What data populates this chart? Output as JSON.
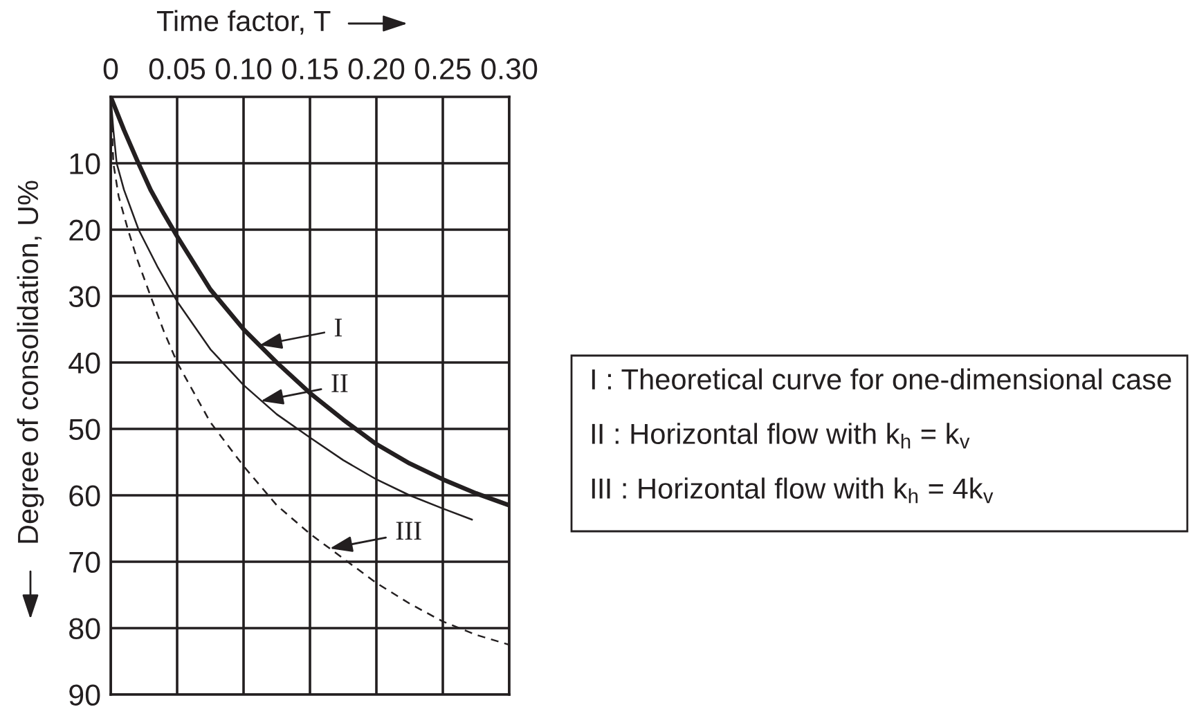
{
  "chart_data": {
    "type": "line",
    "xlabel": "Time factor, T",
    "ylabel": "Degree of consolidation, U%",
    "xlim": [
      0,
      0.3
    ],
    "xticks": [
      0,
      0.05,
      {
        "value": 0.1,
        "label": "0.10"
      },
      0.15,
      {
        "value": 0.2,
        "label": "0.20"
      },
      0.25,
      {
        "value": 0.3,
        "label": "0.30"
      }
    ],
    "ylim": [
      90,
      0
    ],
    "yticks": [
      10,
      20,
      30,
      40,
      50,
      60,
      70,
      80,
      90
    ],
    "grid": true,
    "series": [
      {
        "color": "#231f20",
        "line_style": "solid",
        "x": [
          0,
          0.01,
          0.02,
          0.03,
          0.04,
          0.05,
          0.075,
          0.1,
          0.125,
          0.15,
          0.175,
          0.2,
          0.225,
          0.25,
          0.275,
          0.3
        ],
        "values": [
          0,
          5,
          9.6,
          14,
          17.6,
          21,
          29,
          35,
          40,
          44.6,
          48.6,
          52.3,
          55.2,
          57.6,
          59.7,
          61.5
        ]
      },
      {
        "color": "#231f20",
        "line_style": "solid",
        "x": [
          0,
          0.002,
          0.0045,
          0.01,
          0.021,
          0.035,
          0.05,
          0.075,
          0.1,
          0.125,
          0.15,
          0.175,
          0.2,
          0.225,
          0.25,
          0.2725
        ],
        "values": [
          0,
          5,
          10,
          14,
          20,
          25.5,
          30.8,
          38,
          43.4,
          47.8,
          51.3,
          54.7,
          57.6,
          60,
          62,
          63.7
        ]
      },
      {
        "color": "#231f20",
        "line_style": "dashed",
        "x": [
          0,
          0.001,
          0.002,
          0.006,
          0.013,
          0.02,
          0.03,
          0.04,
          0.05,
          0.075,
          0.1,
          0.125,
          0.15,
          0.175,
          0.2,
          0.225,
          0.25,
          0.275,
          0.3
        ],
        "values": [
          0,
          5,
          10,
          15,
          20,
          24.5,
          30,
          35.3,
          40,
          49,
          55.6,
          61.5,
          65.8,
          69.5,
          73.2,
          76.3,
          79,
          81,
          82.5
        ]
      }
    ],
    "annotations": [
      {
        "text": "I",
        "x": 0.112,
        "y": 37.4
      },
      {
        "text": "II",
        "x": 0.113,
        "y": 45.8
      },
      {
        "text": "III",
        "x": 0.165,
        "y": 68
      },
      "I : Theoretical curve for one-dimensional case",
      "II : Horizontal flow with k$_{h}$ = k$_{v}$",
      "III : Horizontal flow with k$_{h}$ = 4k$_{v}$"
    ]
  }
}
